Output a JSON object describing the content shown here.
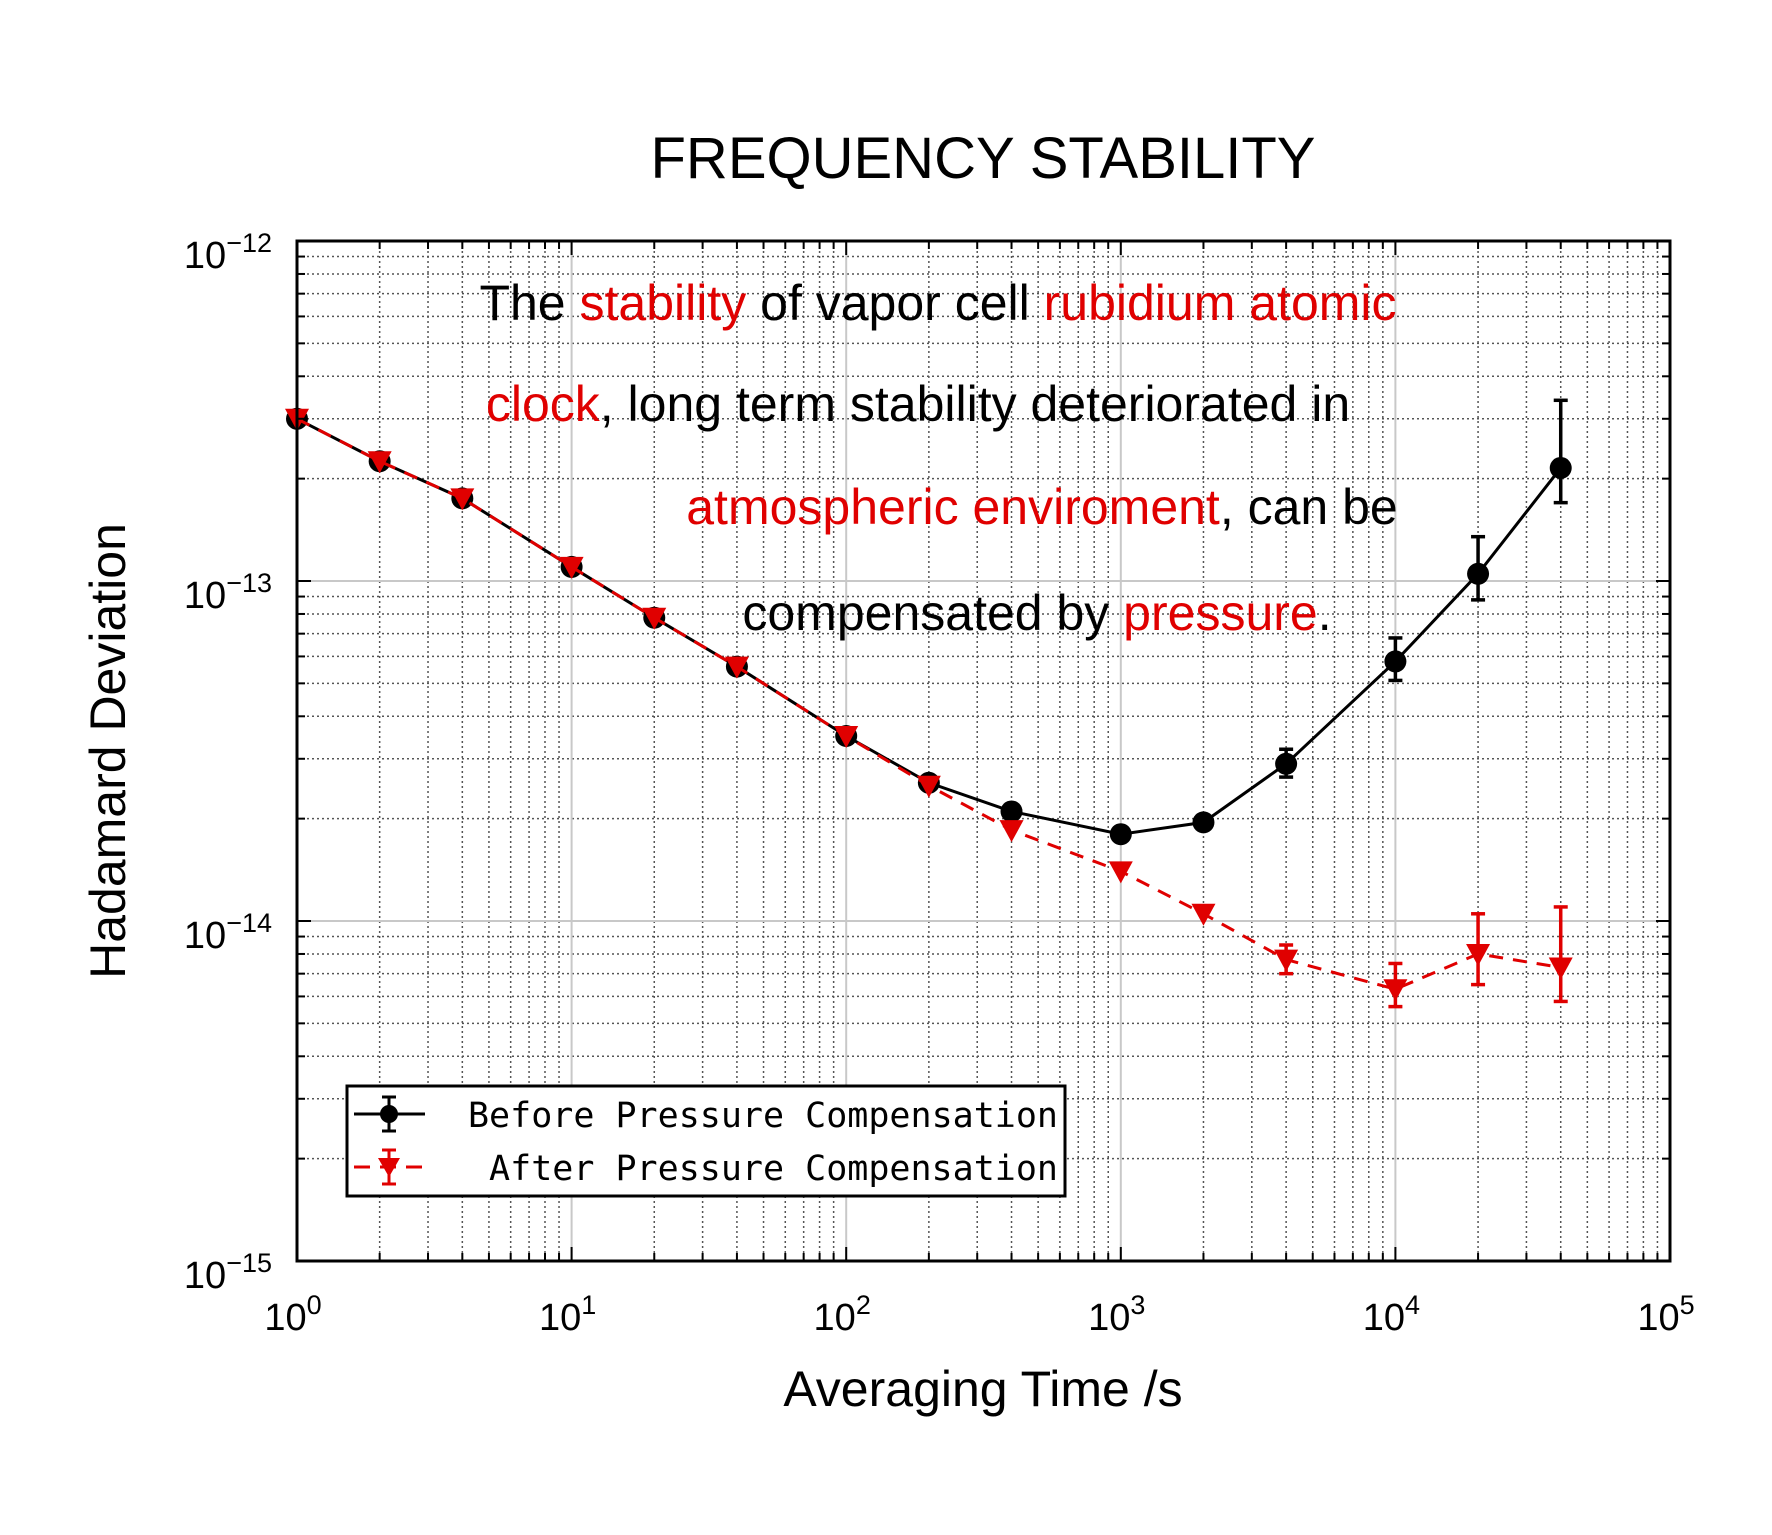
{
  "chart_data": {
    "type": "line",
    "title": "FREQUENCY STABILITY",
    "xlabel": "Averaging Time /s",
    "ylabel": "Hadamard Deviation",
    "xscale": "log",
    "yscale": "log",
    "xlim": [
      1,
      100000
    ],
    "ylim": [
      1e-15,
      1e-12
    ],
    "grid": true,
    "legend_position": "bottom-left",
    "x_ticks": [
      {
        "base": "10",
        "exp": "0"
      },
      {
        "base": "10",
        "exp": "1"
      },
      {
        "base": "10",
        "exp": "2"
      },
      {
        "base": "10",
        "exp": "3"
      },
      {
        "base": "10",
        "exp": "4"
      },
      {
        "base": "10",
        "exp": "5"
      }
    ],
    "y_ticks": [
      {
        "base": "10",
        "exp": "−12"
      },
      {
        "base": "10",
        "exp": "−13"
      },
      {
        "base": "10",
        "exp": "−14"
      },
      {
        "base": "10",
        "exp": "−15"
      }
    ],
    "annotation_lines": [
      [
        {
          "text": "The ",
          "color": "#000000"
        },
        {
          "text": "stability",
          "color": "#e00000"
        },
        {
          "text": " of vapor cell ",
          "color": "#000000"
        },
        {
          "text": "rubidium atomic",
          "color": "#e00000"
        }
      ],
      [
        {
          "text": "clock",
          "color": "#e00000"
        },
        {
          "text": ", long term stability deteriorated in",
          "color": "#000000"
        }
      ],
      [
        {
          "text": "atmospheric enviroment",
          "color": "#e00000"
        },
        {
          "text": ", can be",
          "color": "#000000"
        }
      ],
      [
        {
          "text": "compensated by ",
          "color": "#000000"
        },
        {
          "text": "pressure",
          "color": "#e00000"
        },
        {
          "text": ".",
          "color": "#000000"
        }
      ]
    ],
    "series": [
      {
        "name": "Before Pressure Compensation",
        "color": "#000000",
        "marker": "circle",
        "linestyle": "solid",
        "x": [
          1,
          2,
          4,
          10,
          20,
          40,
          100,
          200,
          400,
          1000,
          2000,
          4000,
          10000,
          20000,
          40000
        ],
        "y": [
          3e-13,
          2.25e-13,
          1.75e-13,
          1.1e-13,
          7.8e-14,
          5.6e-14,
          3.5e-14,
          2.55e-14,
          2.1e-14,
          1.8e-14,
          1.95e-14,
          2.9e-14,
          5.8e-14,
          1.05e-13,
          2.15e-13
        ],
        "y_err_low": [
          null,
          null,
          null,
          null,
          null,
          null,
          null,
          null,
          null,
          null,
          null,
          2.65e-14,
          5.1e-14,
          8.8e-14,
          1.7e-13
        ],
        "y_err_high": [
          null,
          null,
          null,
          null,
          null,
          null,
          null,
          null,
          null,
          null,
          null,
          3.2e-14,
          6.8e-14,
          1.35e-13,
          3.4e-13
        ]
      },
      {
        "name": "After Pressure Compensation",
        "color": "#e00000",
        "marker": "triangle-down",
        "linestyle": "dashed",
        "x": [
          1,
          2,
          4,
          10,
          20,
          40,
          100,
          200,
          400,
          1000,
          2000,
          4000,
          10000,
          20000,
          40000
        ],
        "y": [
          3e-13,
          2.25e-13,
          1.75e-13,
          1.1e-13,
          7.8e-14,
          5.6e-14,
          3.5e-14,
          2.5e-14,
          1.85e-14,
          1.4e-14,
          1.05e-14,
          7.7e-15,
          6.3e-15,
          8e-15,
          7.3e-15
        ],
        "y_err_low": [
          null,
          null,
          null,
          null,
          null,
          null,
          null,
          null,
          null,
          null,
          null,
          7e-15,
          5.6e-15,
          6.5e-15,
          5.8e-15
        ],
        "y_err_high": [
          null,
          null,
          null,
          null,
          null,
          null,
          null,
          null,
          null,
          null,
          null,
          8.5e-15,
          7.5e-15,
          1.05e-14,
          1.1e-14
        ]
      }
    ]
  }
}
